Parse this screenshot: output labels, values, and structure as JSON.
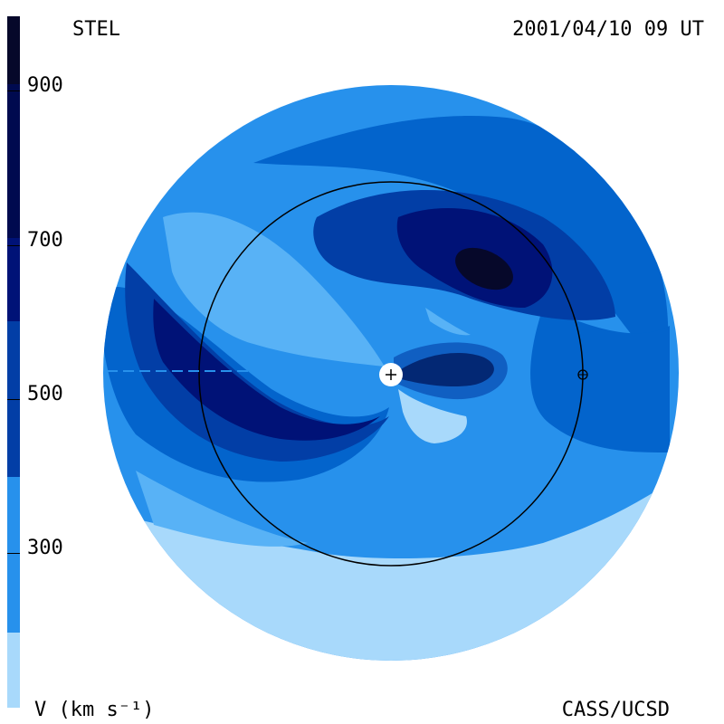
{
  "header": {
    "origin_label": "STEL",
    "timestamp": "2001/04/10 09 UT"
  },
  "footer": {
    "credit": "CASS/UCSD",
    "unit_label": "V (km s⁻¹)"
  },
  "colorbar": {
    "ticks": [
      "900",
      "700",
      "500",
      "300"
    ],
    "levels": [
      "#06082a",
      "#000a4f",
      "#001277",
      "#023ea6",
      "#0364cc",
      "#2791ec",
      "#58b2f6",
      "#a8d9fb"
    ]
  },
  "map": {
    "sun_symbol": "+",
    "earth_symbol": "⊕",
    "palette": {
      "lightest": "#a8d9fb",
      "light": "#58b2f6",
      "mid": "#2791ec",
      "medium": "#0364cc",
      "dark": "#023ea6",
      "darker": "#001277",
      "darkest": "#06082a"
    }
  }
}
